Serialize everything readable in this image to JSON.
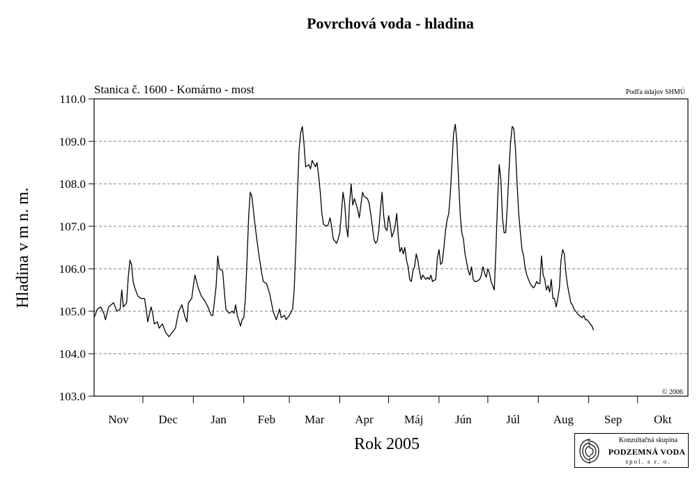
{
  "chart_data": {
    "type": "line",
    "title": "Povrchová voda - hladina",
    "subtitle": "Stanica č. 1600 - Komárno - most",
    "source_note": "Podľa údajov SHMÚ",
    "copyright": "© 2006",
    "xlabel": "Rok 2005",
    "ylabel": "Hladina v m n. m.",
    "ylim": [
      103.0,
      110.0
    ],
    "yticks": [
      "103.0",
      "104.0",
      "105.0",
      "106.0",
      "107.0",
      "108.0",
      "109.0",
      "110.0"
    ],
    "grid": "horizontal dashed",
    "months": [
      "Nov",
      "Dec",
      "Jan",
      "Feb",
      "Mar",
      "Apr",
      "Máj",
      "Jún",
      "Júl",
      "Aug",
      "Sep",
      "Okt"
    ],
    "days_per_month": [
      30,
      31,
      31,
      28,
      31,
      30,
      31,
      30,
      31,
      31,
      30,
      31
    ],
    "series": [
      {
        "line_color": "#000000",
        "points": [
          [
            0,
            104.85
          ],
          [
            2,
            105.05
          ],
          [
            4,
            105.1
          ],
          [
            6,
            104.95
          ],
          [
            7,
            104.8
          ],
          [
            9,
            105.1
          ],
          [
            12,
            105.2
          ],
          [
            13,
            105.1
          ],
          [
            14,
            105.0
          ],
          [
            16,
            105.05
          ],
          [
            17,
            105.5
          ],
          [
            18,
            105.1
          ],
          [
            20,
            105.2
          ],
          [
            21,
            105.8
          ],
          [
            22,
            106.2
          ],
          [
            23,
            106.1
          ],
          [
            24,
            105.7
          ],
          [
            25,
            105.55
          ],
          [
            27,
            105.35
          ],
          [
            29,
            105.3
          ],
          [
            31,
            105.3
          ],
          [
            32,
            105.05
          ],
          [
            33,
            104.75
          ],
          [
            35,
            105.1
          ],
          [
            36,
            104.95
          ],
          [
            37,
            104.7
          ],
          [
            39,
            104.75
          ],
          [
            40,
            104.6
          ],
          [
            42,
            104.7
          ],
          [
            44,
            104.5
          ],
          [
            46,
            104.4
          ],
          [
            48,
            104.5
          ],
          [
            50,
            104.6
          ],
          [
            52,
            105.0
          ],
          [
            54,
            105.15
          ],
          [
            56,
            104.85
          ],
          [
            57,
            104.75
          ],
          [
            58,
            105.2
          ],
          [
            60,
            105.3
          ],
          [
            61,
            105.6
          ],
          [
            62,
            105.85
          ],
          [
            64,
            105.55
          ],
          [
            66,
            105.35
          ],
          [
            68,
            105.25
          ],
          [
            70,
            105.1
          ],
          [
            72,
            104.9
          ],
          [
            73,
            104.9
          ],
          [
            75,
            105.6
          ],
          [
            76,
            106.3
          ],
          [
            77,
            106.0
          ],
          [
            79,
            105.95
          ],
          [
            80,
            105.5
          ],
          [
            81,
            105.05
          ],
          [
            83,
            104.95
          ],
          [
            85,
            105.0
          ],
          [
            86,
            104.95
          ],
          [
            87,
            105.15
          ],
          [
            88,
            104.9
          ],
          [
            90,
            104.65
          ],
          [
            91,
            104.8
          ],
          [
            92,
            104.85
          ],
          [
            93,
            105.3
          ],
          [
            94,
            106.2
          ],
          [
            95,
            107.25
          ],
          [
            96,
            107.8
          ],
          [
            97,
            107.7
          ],
          [
            99,
            107.0
          ],
          [
            101,
            106.4
          ],
          [
            103,
            105.9
          ],
          [
            104,
            105.7
          ],
          [
            106,
            105.65
          ],
          [
            108,
            105.4
          ],
          [
            110,
            105.0
          ],
          [
            112,
            104.8
          ],
          [
            114,
            105.05
          ],
          [
            115,
            104.85
          ],
          [
            117,
            104.9
          ],
          [
            118,
            104.8
          ],
          [
            120,
            104.9
          ],
          [
            122,
            105.05
          ],
          [
            123,
            105.5
          ],
          [
            124,
            106.5
          ],
          [
            125,
            107.8
          ],
          [
            126,
            108.8
          ],
          [
            127,
            109.2
          ],
          [
            128,
            109.35
          ],
          [
            129,
            108.95
          ],
          [
            130,
            108.4
          ],
          [
            132,
            108.45
          ],
          [
            133,
            108.35
          ],
          [
            134,
            108.55
          ],
          [
            136,
            108.4
          ],
          [
            137,
            108.5
          ],
          [
            138,
            108.2
          ],
          [
            139,
            107.8
          ],
          [
            140,
            107.3
          ],
          [
            141,
            107.05
          ],
          [
            143,
            107.0
          ],
          [
            144,
            107.05
          ],
          [
            145,
            107.2
          ],
          [
            146,
            107.0
          ],
          [
            147,
            106.7
          ],
          [
            149,
            106.6
          ],
          [
            150,
            106.7
          ],
          [
            151,
            106.85
          ],
          [
            152,
            107.3
          ],
          [
            153,
            107.8
          ],
          [
            154,
            107.55
          ],
          [
            155,
            107.0
          ],
          [
            156,
            106.75
          ],
          [
            157,
            107.55
          ],
          [
            158,
            108.0
          ],
          [
            159,
            107.5
          ],
          [
            160,
            107.65
          ],
          [
            162,
            107.4
          ],
          [
            163,
            107.2
          ],
          [
            164,
            107.5
          ],
          [
            165,
            107.8
          ],
          [
            166,
            107.7
          ],
          [
            168,
            107.65
          ],
          [
            169,
            107.55
          ],
          [
            170,
            107.3
          ],
          [
            171,
            107.0
          ],
          [
            172,
            106.7
          ],
          [
            173,
            106.6
          ],
          [
            174,
            106.65
          ],
          [
            175,
            106.9
          ],
          [
            176,
            107.4
          ],
          [
            177,
            107.8
          ],
          [
            178,
            107.25
          ],
          [
            179,
            106.95
          ],
          [
            180,
            106.9
          ],
          [
            181,
            107.25
          ],
          [
            182,
            107.05
          ],
          [
            183,
            106.75
          ],
          [
            184,
            106.85
          ],
          [
            185,
            107.0
          ],
          [
            186,
            107.3
          ],
          [
            187,
            106.75
          ],
          [
            188,
            106.4
          ],
          [
            189,
            106.5
          ],
          [
            190,
            106.35
          ],
          [
            191,
            106.5
          ],
          [
            192,
            106.2
          ],
          [
            193,
            106.05
          ],
          [
            194,
            105.75
          ],
          [
            195,
            105.7
          ],
          [
            196,
            105.95
          ],
          [
            197,
            106.05
          ],
          [
            198,
            106.35
          ],
          [
            199,
            106.2
          ],
          [
            200,
            105.95
          ],
          [
            201,
            105.75
          ],
          [
            202,
            105.85
          ],
          [
            204,
            105.75
          ],
          [
            205,
            105.8
          ],
          [
            206,
            105.75
          ],
          [
            207,
            105.85
          ],
          [
            208,
            105.7
          ],
          [
            210,
            105.75
          ],
          [
            211,
            106.25
          ],
          [
            212,
            106.45
          ],
          [
            213,
            106.1
          ],
          [
            214,
            106.15
          ],
          [
            215,
            106.5
          ],
          [
            216,
            106.9
          ],
          [
            217,
            107.15
          ],
          [
            218,
            107.3
          ],
          [
            219,
            107.8
          ],
          [
            220,
            108.5
          ],
          [
            221,
            109.2
          ],
          [
            222,
            109.4
          ],
          [
            223,
            109.0
          ],
          [
            224,
            108.1
          ],
          [
            225,
            107.3
          ],
          [
            226,
            106.85
          ],
          [
            227,
            106.7
          ],
          [
            228,
            106.35
          ],
          [
            229,
            106.15
          ],
          [
            230,
            105.95
          ],
          [
            231,
            105.85
          ],
          [
            232,
            106.05
          ],
          [
            233,
            105.75
          ],
          [
            234,
            105.7
          ],
          [
            235,
            105.7
          ],
          [
            237,
            105.75
          ],
          [
            238,
            105.85
          ],
          [
            239,
            106.05
          ],
          [
            240,
            105.9
          ],
          [
            241,
            105.8
          ],
          [
            242,
            106.0
          ],
          [
            243,
            105.9
          ],
          [
            244,
            105.7
          ],
          [
            245,
            105.6
          ],
          [
            246,
            105.5
          ],
          [
            247,
            106.5
          ],
          [
            248,
            107.6
          ],
          [
            249,
            108.45
          ],
          [
            250,
            108.1
          ],
          [
            251,
            107.2
          ],
          [
            252,
            106.85
          ],
          [
            253,
            106.85
          ],
          [
            254,
            107.5
          ],
          [
            255,
            108.3
          ],
          [
            256,
            109.0
          ],
          [
            257,
            109.35
          ],
          [
            258,
            109.3
          ],
          [
            259,
            108.8
          ],
          [
            260,
            108.0
          ],
          [
            261,
            107.3
          ],
          [
            262,
            106.85
          ],
          [
            263,
            106.45
          ],
          [
            264,
            106.3
          ],
          [
            265,
            106.0
          ],
          [
            266,
            105.85
          ],
          [
            267,
            105.75
          ],
          [
            268,
            105.65
          ],
          [
            269,
            105.6
          ],
          [
            270,
            105.55
          ],
          [
            271,
            105.6
          ],
          [
            272,
            105.7
          ],
          [
            273,
            105.65
          ],
          [
            274,
            105.65
          ],
          [
            275,
            106.3
          ],
          [
            276,
            105.85
          ],
          [
            277,
            105.75
          ],
          [
            278,
            105.5
          ],
          [
            279,
            105.6
          ],
          [
            280,
            105.45
          ],
          [
            281,
            105.75
          ],
          [
            282,
            105.3
          ],
          [
            283,
            105.3
          ],
          [
            284,
            105.1
          ],
          [
            285,
            105.3
          ],
          [
            286,
            105.55
          ],
          [
            287,
            106.2
          ],
          [
            288,
            106.45
          ],
          [
            289,
            106.35
          ],
          [
            290,
            105.9
          ],
          [
            291,
            105.6
          ],
          [
            292,
            105.4
          ],
          [
            293,
            105.2
          ],
          [
            294,
            105.15
          ],
          [
            295,
            105.05
          ],
          [
            296,
            105.0
          ],
          [
            297,
            104.95
          ],
          [
            298,
            104.9
          ],
          [
            300,
            104.85
          ],
          [
            301,
            104.9
          ],
          [
            302,
            104.8
          ],
          [
            303,
            104.8
          ],
          [
            304,
            104.75
          ],
          [
            305,
            104.7
          ],
          [
            306,
            104.65
          ],
          [
            307,
            104.55
          ]
        ]
      }
    ]
  },
  "logo": {
    "company_top": "Konzultačná skupina",
    "company_name": "PODZEMNÁ VODA",
    "company_suffix": "spol. s r. o."
  }
}
